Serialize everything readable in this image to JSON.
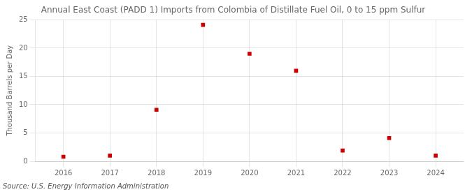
{
  "chart_data": {
    "type": "scatter",
    "title": "Annual East Coast (PADD 1) Imports from Colombia of Distillate Fuel Oil, 0 to 15 ppm Sulfur",
    "ylabel": "Thousand Barrels per Day",
    "source": "Source: U.S. Energy Information Administration",
    "x": [
      2016,
      2017,
      2018,
      2019,
      2020,
      2021,
      2022,
      2023,
      2024
    ],
    "values": [
      0.8,
      1.0,
      9.1,
      24.1,
      19.0,
      16.0,
      1.9,
      4.1,
      1.0
    ],
    "color": "#cc0000",
    "marker": "square",
    "xlim": [
      2015.4,
      2024.6
    ],
    "xticks": [
      2016,
      2017,
      2018,
      2019,
      2020,
      2021,
      2022,
      2023,
      2024
    ],
    "ylim": [
      0,
      25
    ],
    "yticks": [
      0,
      5,
      10,
      15,
      20,
      25
    ],
    "grid": true
  }
}
